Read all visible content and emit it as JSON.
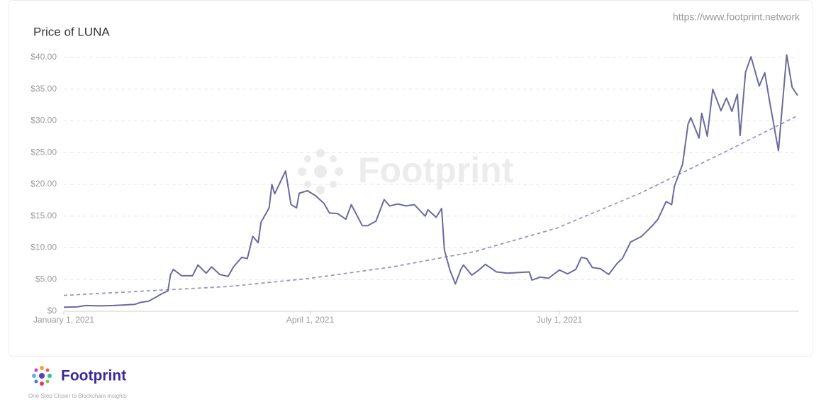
{
  "source_url": "https://www.footprint.network",
  "watermark": "Footprint",
  "footer": {
    "brand": "Footprint",
    "tagline": "One Step Closer to Blockchain Insights"
  },
  "chart_data": {
    "type": "line",
    "title": "Price of LUNA",
    "x": [
      "2021-01-01",
      "2021-01-06",
      "2021-01-09",
      "2021-01-14",
      "2021-01-19",
      "2021-01-23",
      "2021-01-27",
      "2021-01-29",
      "2021-02-01",
      "2021-02-04",
      "2021-02-06",
      "2021-02-08",
      "2021-02-09",
      "2021-02-10",
      "2021-02-13",
      "2021-02-17",
      "2021-02-19",
      "2021-02-22",
      "2021-02-24",
      "2021-02-27",
      "2021-03-02",
      "2021-03-04",
      "2021-03-07",
      "2021-03-09",
      "2021-03-11",
      "2021-03-13",
      "2021-03-14",
      "2021-03-17",
      "2021-03-18",
      "2021-03-19",
      "2021-03-23",
      "2021-03-25",
      "2021-03-27",
      "2021-03-28",
      "2021-03-31",
      "2021-04-03",
      "2021-04-06",
      "2021-04-08",
      "2021-04-11",
      "2021-04-14",
      "2021-04-16",
      "2021-04-20",
      "2021-04-22",
      "2021-04-25",
      "2021-04-28",
      "2021-04-30",
      "2021-05-03",
      "2021-05-06",
      "2021-05-09",
      "2021-05-13",
      "2021-05-14",
      "2021-05-17",
      "2021-05-19",
      "2021-05-20",
      "2021-05-22",
      "2021-05-24",
      "2021-05-26",
      "2021-05-27",
      "2021-05-30",
      "2021-06-01",
      "2021-06-04",
      "2021-06-08",
      "2021-06-12",
      "2021-06-16",
      "2021-06-20",
      "2021-06-21",
      "2021-06-24",
      "2021-06-27",
      "2021-07-01",
      "2021-07-04",
      "2021-07-07",
      "2021-07-09",
      "2021-07-11",
      "2021-07-13",
      "2021-07-16",
      "2021-07-19",
      "2021-07-22",
      "2021-07-24",
      "2021-07-27",
      "2021-07-31",
      "2021-08-04",
      "2021-08-06",
      "2021-08-09",
      "2021-08-11",
      "2021-08-12",
      "2021-08-15",
      "2021-08-17",
      "2021-08-18",
      "2021-08-21",
      "2021-08-22",
      "2021-08-24",
      "2021-08-26",
      "2021-08-29",
      "2021-08-31",
      "2021-09-02",
      "2021-09-04",
      "2021-09-05",
      "2021-09-07",
      "2021-09-09",
      "2021-09-12",
      "2021-09-14",
      "2021-09-16",
      "2021-09-19",
      "2021-09-22",
      "2021-09-24",
      "2021-09-26"
    ],
    "values": [
      0.65,
      0.7,
      0.9,
      0.85,
      0.9,
      1.0,
      1.1,
      1.4,
      1.6,
      2.3,
      2.8,
      3.2,
      5.8,
      6.6,
      5.6,
      5.6,
      7.3,
      6.0,
      7.0,
      5.8,
      5.5,
      7.0,
      8.5,
      8.3,
      11.8,
      10.8,
      14.0,
      16.3,
      20.0,
      18.5,
      22.1,
      16.8,
      16.3,
      18.6,
      19.0,
      18.2,
      17.0,
      15.5,
      15.4,
      14.5,
      16.8,
      13.5,
      13.5,
      14.2,
      17.6,
      16.6,
      16.9,
      16.6,
      16.8,
      15.0,
      16.0,
      14.8,
      16.2,
      9.7,
      6.5,
      4.3,
      6.6,
      7.3,
      5.7,
      6.3,
      7.4,
      6.2,
      6.0,
      6.1,
      6.2,
      4.9,
      5.4,
      5.2,
      6.5,
      5.9,
      6.6,
      8.5,
      8.3,
      6.9,
      6.7,
      5.8,
      7.5,
      8.3,
      10.9,
      11.8,
      13.5,
      14.5,
      17.3,
      16.8,
      19.7,
      23.2,
      29.5,
      30.5,
      27.3,
      31.2,
      27.6,
      35.0,
      31.6,
      33.6,
      31.5,
      34.2,
      27.7,
      37.7,
      40.1,
      35.5,
      37.6,
      32.5,
      25.3,
      40.4,
      35.3,
      34.0
    ],
    "color": "#6b6a9f",
    "trend": {
      "x": [
        "2021-01-01",
        "2021-03-02",
        "2021-04-01",
        "2021-05-01",
        "2021-05-31",
        "2021-06-30",
        "2021-07-30",
        "2021-08-29",
        "2021-09-26"
      ],
      "values": [
        2.5,
        3.9,
        5.2,
        7.0,
        9.4,
        13.1,
        18.5,
        24.8,
        30.8
      ],
      "color": "#9a96c4",
      "dashed": true
    },
    "xlim": [
      "2021-01-01",
      "2021-09-26"
    ],
    "xticks": [
      {
        "value": "2021-01-01",
        "label": "January 1, 2021"
      },
      {
        "value": "2021-04-01",
        "label": "April 1, 2021"
      },
      {
        "value": "2021-07-01",
        "label": "July 1, 2021"
      }
    ],
    "ylim": [
      0,
      40
    ],
    "yticks": [
      {
        "value": 0,
        "label": "$0"
      },
      {
        "value": 5,
        "label": "$5.00"
      },
      {
        "value": 10,
        "label": "$10.00"
      },
      {
        "value": 15,
        "label": "$15.00"
      },
      {
        "value": 20,
        "label": "$20.00"
      },
      {
        "value": 25,
        "label": "$25.00"
      },
      {
        "value": 30,
        "label": "$30.00"
      },
      {
        "value": 35,
        "label": "$35.00"
      },
      {
        "value": 40,
        "label": "$40.00"
      }
    ],
    "grid": true
  }
}
